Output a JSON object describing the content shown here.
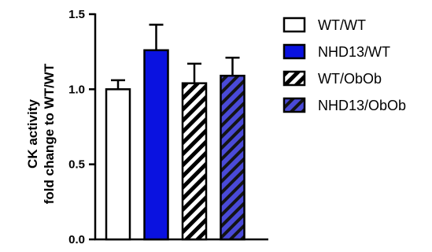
{
  "chart_data": {
    "type": "bar",
    "categories": [
      "WT/WT",
      "NHD13/WT",
      "WT/ObOb",
      "NHD13/ObOb"
    ],
    "values": [
      1.0,
      1.26,
      1.04,
      1.09
    ],
    "errors": [
      0.06,
      0.17,
      0.13,
      0.12
    ],
    "ylabel_line1": "CK activity",
    "ylabel_line2": "fold change to WT/WT",
    "ylim": [
      0,
      1.5
    ],
    "yticks": [
      0.0,
      0.5,
      1.0,
      1.5
    ],
    "ytick_labels": [
      "0.0",
      "0.5",
      "1.0",
      "1.5"
    ],
    "legend_position": "right",
    "legend": [
      {
        "label": "WT/WT",
        "fill": "#ffffff",
        "pattern": "solid"
      },
      {
        "label": "NHD13/WT",
        "fill": "#0a12e0",
        "pattern": "solid"
      },
      {
        "label": "WT/ObOb",
        "fill": "#ffffff",
        "pattern": "hatch-black"
      },
      {
        "label": "NHD13/ObOb",
        "fill": "#4a4ad8",
        "pattern": "hatch-blue"
      }
    ],
    "colors": {
      "blue": "#0a12e0",
      "hatch_blue": "#4a4ad8",
      "stroke": "#000000"
    }
  }
}
